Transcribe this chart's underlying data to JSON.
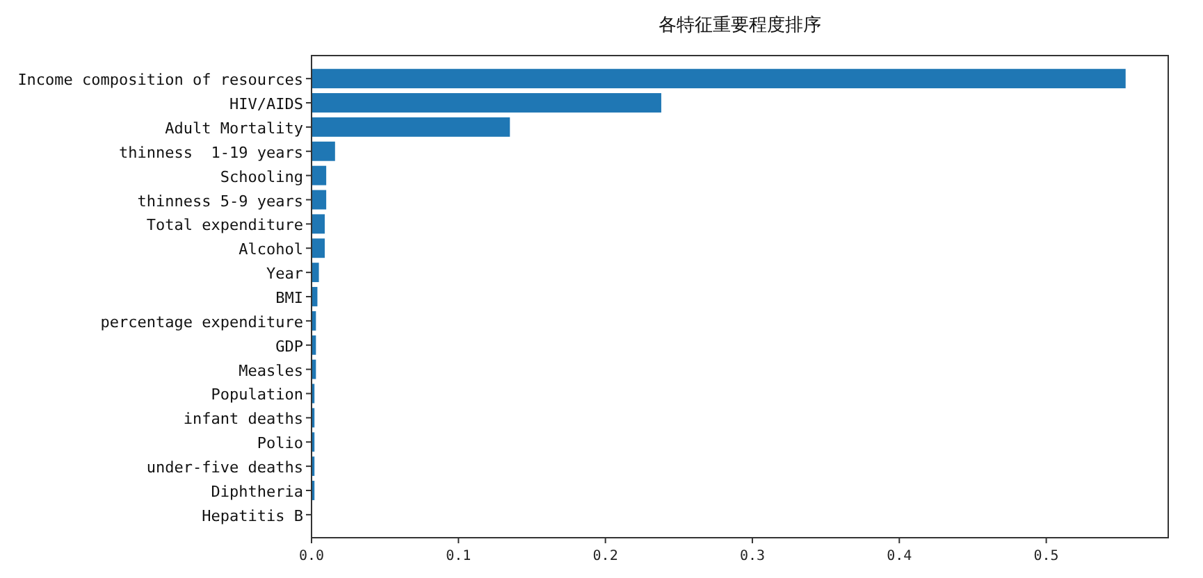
{
  "chart_data": {
    "type": "bar",
    "orientation": "horizontal",
    "title": "各特征重要程度排序",
    "categories": [
      "Income composition of resources",
      "HIV/AIDS",
      "Adult Mortality",
      "thinness  1-19 years",
      "Schooling",
      "thinness 5-9 years",
      "Total expenditure",
      "Alcohol",
      "Year",
      "BMI",
      "percentage expenditure",
      "GDP",
      "Measles",
      "Population",
      "infant deaths",
      "Polio",
      "under-five deaths",
      "Diphtheria",
      "Hepatitis B"
    ],
    "values": [
      0.554,
      0.238,
      0.135,
      0.016,
      0.01,
      0.01,
      0.009,
      0.009,
      0.005,
      0.004,
      0.003,
      0.003,
      0.003,
      0.002,
      0.002,
      0.002,
      0.002,
      0.002,
      null
    ],
    "color": "#1f77b4",
    "xlim": [
      0,
      0.583
    ],
    "xticks": [
      {
        "value": 0,
        "label": "0.0"
      },
      {
        "value": 0.1,
        "label": "0.1"
      },
      {
        "value": 0.2,
        "label": "0.2"
      },
      {
        "value": 0.3,
        "label": "0.3"
      },
      {
        "value": 0.4,
        "label": "0.4"
      },
      {
        "value": 0.5,
        "label": "0.5"
      }
    ]
  }
}
